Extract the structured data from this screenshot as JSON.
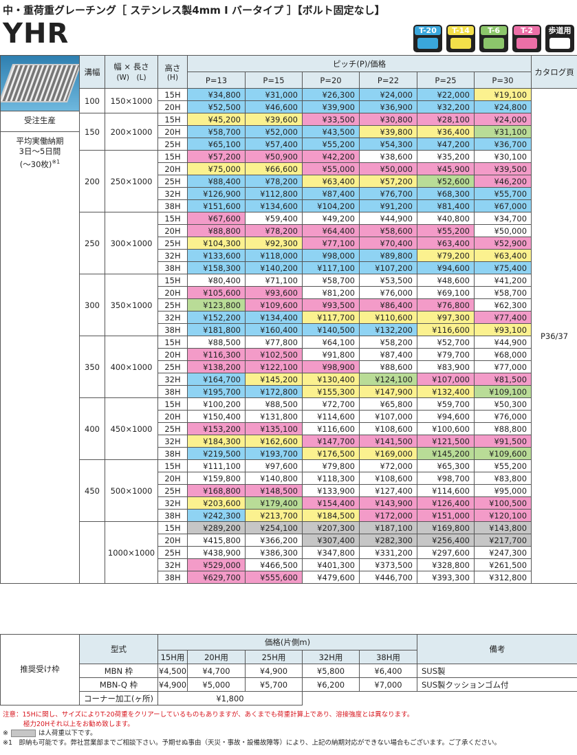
{
  "header": {
    "title": "中・重荷重グレーチング［ ステンレス製4mm I バータイプ ］【ボルト固定なし】",
    "model": "YHR",
    "badges": [
      {
        "label": "T-20",
        "color": "#3aa7dc"
      },
      {
        "label": "T-14",
        "color": "#f3e04a"
      },
      {
        "label": "T-6",
        "color": "#8cc66b"
      },
      {
        "label": "T-2",
        "color": "#ec6fa7"
      },
      {
        "label": "歩道用",
        "color": "#222222"
      }
    ]
  },
  "side": {
    "made_to_order": "受注生産",
    "lead_time": [
      "平均実働納期",
      "3日～5日間",
      "(～30枚)"
    ],
    "lead_note": "※1"
  },
  "palette": {
    "B": "#8fd3f3",
    "Y": "#fbf18f",
    "P": "#f39bc8",
    "G": "#b9dc97",
    "S": "#c6c6c6",
    "W": "#ffffff"
  },
  "table": {
    "headers": {
      "groove": "溝幅",
      "size": "幅 × 長さ",
      "size_sub": "(W)　(L)",
      "height": "高さ",
      "height_sub": "(H)",
      "pitch": "ピッチ(P)/価格",
      "pitches": [
        "P=13",
        "P=15",
        "P=20",
        "P=22",
        "P=25",
        "P=30"
      ],
      "catalog": "カタログ頁"
    },
    "catalog_page": "P36/37",
    "groups": [
      {
        "groove": "100",
        "size": "150×1000",
        "rows": [
          {
            "h": "15H",
            "prices": [
              "¥34,800",
              "¥31,000",
              "¥26,300",
              "¥24,000",
              "¥22,000",
              "¥19,100"
            ],
            "fills": "BBBBBY"
          },
          {
            "h": "20H",
            "prices": [
              "¥52,500",
              "¥46,600",
              "¥39,900",
              "¥36,900",
              "¥32,200",
              "¥24,800"
            ],
            "fills": "BBBBBB"
          }
        ]
      },
      {
        "groove": "150",
        "size": "200×1000",
        "rows": [
          {
            "h": "15H",
            "prices": [
              "¥45,200",
              "¥39,600",
              "¥33,500",
              "¥30,800",
              "¥28,100",
              "¥24,000"
            ],
            "fills": "YYPPPP"
          },
          {
            "h": "20H",
            "prices": [
              "¥58,700",
              "¥52,000",
              "¥43,500",
              "¥39,800",
              "¥36,400",
              "¥31,100"
            ],
            "fills": "BBBYYG"
          },
          {
            "h": "25H",
            "prices": [
              "¥65,100",
              "¥57,400",
              "¥55,200",
              "¥54,300",
              "¥47,200",
              "¥36,700"
            ],
            "fills": "BBBBBB"
          }
        ]
      },
      {
        "groove": "200",
        "size": "250×1000",
        "rows": [
          {
            "h": "15H",
            "prices": [
              "¥57,200",
              "¥50,900",
              "¥42,200",
              "¥38,600",
              "¥35,200",
              "¥30,100"
            ],
            "fills": "PPPWWW"
          },
          {
            "h": "20H",
            "prices": [
              "¥75,000",
              "¥66,600",
              "¥55,000",
              "¥50,000",
              "¥45,900",
              "¥39,500"
            ],
            "fills": "YYPPPP"
          },
          {
            "h": "25H",
            "prices": [
              "¥88,400",
              "¥78,200",
              "¥63,400",
              "¥57,200",
              "¥52,600",
              "¥46,200"
            ],
            "fills": "BBYYGP"
          },
          {
            "h": "32H",
            "prices": [
              "¥126,900",
              "¥112,800",
              "¥87,400",
              "¥76,700",
              "¥68,300",
              "¥55,700"
            ],
            "fills": "BBBBBB"
          },
          {
            "h": "38H",
            "prices": [
              "¥151,600",
              "¥134,600",
              "¥104,200",
              "¥91,200",
              "¥81,400",
              "¥67,000"
            ],
            "fills": "BBBBBB"
          }
        ]
      },
      {
        "groove": "250",
        "size": "300×1000",
        "rows": [
          {
            "h": "15H",
            "prices": [
              "¥67,600",
              "¥59,400",
              "¥49,200",
              "¥44,900",
              "¥40,800",
              "¥34,700"
            ],
            "fills": "PWWWWW"
          },
          {
            "h": "20H",
            "prices": [
              "¥88,800",
              "¥78,200",
              "¥64,400",
              "¥58,600",
              "¥55,200",
              "¥50,000"
            ],
            "fills": "PPPPPW"
          },
          {
            "h": "25H",
            "prices": [
              "¥104,300",
              "¥92,300",
              "¥77,100",
              "¥70,400",
              "¥63,400",
              "¥52,900"
            ],
            "fills": "YYPPPP"
          },
          {
            "h": "32H",
            "prices": [
              "¥133,600",
              "¥118,000",
              "¥98,000",
              "¥89,800",
              "¥79,200",
              "¥63,400"
            ],
            "fills": "BBBBYY"
          },
          {
            "h": "38H",
            "prices": [
              "¥158,300",
              "¥140,200",
              "¥117,100",
              "¥107,200",
              "¥94,600",
              "¥75,400"
            ],
            "fills": "BBBBBB"
          }
        ]
      },
      {
        "groove": "300",
        "size": "350×1000",
        "rows": [
          {
            "h": "15H",
            "prices": [
              "¥80,400",
              "¥71,100",
              "¥58,700",
              "¥53,500",
              "¥48,600",
              "¥41,200"
            ],
            "fills": "WWWWWW"
          },
          {
            "h": "20H",
            "prices": [
              "¥105,600",
              "¥93,600",
              "¥81,200",
              "¥76,000",
              "¥69,100",
              "¥58,700"
            ],
            "fills": "PPWWWW"
          },
          {
            "h": "25H",
            "prices": [
              "¥123,800",
              "¥109,600",
              "¥93,500",
              "¥86,400",
              "¥76,800",
              "¥62,300"
            ],
            "fills": "GPPPPW"
          },
          {
            "h": "32H",
            "prices": [
              "¥152,200",
              "¥134,400",
              "¥117,700",
              "¥110,600",
              "¥97,300",
              "¥77,400"
            ],
            "fills": "BBYYYP"
          },
          {
            "h": "38H",
            "prices": [
              "¥181,800",
              "¥160,400",
              "¥140,500",
              "¥132,200",
              "¥116,600",
              "¥93,100"
            ],
            "fills": "BBBBYY"
          }
        ]
      },
      {
        "groove": "350",
        "size": "400×1000",
        "rows": [
          {
            "h": "15H",
            "prices": [
              "¥88,500",
              "¥77,800",
              "¥64,100",
              "¥58,200",
              "¥52,700",
              "¥44,900"
            ],
            "fills": "WWWWWW"
          },
          {
            "h": "20H",
            "prices": [
              "¥116,300",
              "¥102,500",
              "¥91,800",
              "¥87,400",
              "¥79,700",
              "¥68,000"
            ],
            "fills": "PPWWWW"
          },
          {
            "h": "25H",
            "prices": [
              "¥138,200",
              "¥122,100",
              "¥98,900",
              "¥88,600",
              "¥83,900",
              "¥77,000"
            ],
            "fills": "PPPWWW"
          },
          {
            "h": "32H",
            "prices": [
              "¥164,700",
              "¥145,200",
              "¥130,400",
              "¥124,100",
              "¥107,000",
              "¥81,500"
            ],
            "fills": "BYYGPP"
          },
          {
            "h": "38H",
            "prices": [
              "¥195,700",
              "¥172,800",
              "¥155,300",
              "¥147,900",
              "¥132,400",
              "¥109,100"
            ],
            "fills": "BBYYYG"
          }
        ]
      },
      {
        "groove": "400",
        "size": "450×1000",
        "rows": [
          {
            "h": "15H",
            "prices": [
              "¥100,200",
              "¥88,500",
              "¥72,700",
              "¥65,800",
              "¥59,700",
              "¥50,300"
            ],
            "fills": "WWWWWW"
          },
          {
            "h": "20H",
            "prices": [
              "¥150,400",
              "¥131,800",
              "¥114,600",
              "¥107,000",
              "¥94,600",
              "¥76,000"
            ],
            "fills": "WWWWWW"
          },
          {
            "h": "25H",
            "prices": [
              "¥153,200",
              "¥135,100",
              "¥116,600",
              "¥108,600",
              "¥100,600",
              "¥88,800"
            ],
            "fills": "PPWWWW"
          },
          {
            "h": "32H",
            "prices": [
              "¥184,300",
              "¥162,600",
              "¥147,700",
              "¥141,500",
              "¥121,500",
              "¥91,500"
            ],
            "fills": "YYPPPP"
          },
          {
            "h": "38H",
            "prices": [
              "¥219,500",
              "¥193,700",
              "¥176,500",
              "¥169,000",
              "¥145,200",
              "¥109,600"
            ],
            "fills": "BBYYGG"
          }
        ]
      },
      {
        "groove": "450",
        "size": "500×1000",
        "rows": [
          {
            "h": "15H",
            "prices": [
              "¥111,100",
              "¥97,600",
              "¥79,800",
              "¥72,000",
              "¥65,300",
              "¥55,200"
            ],
            "fills": "WWWWWW"
          },
          {
            "h": "20H",
            "prices": [
              "¥159,800",
              "¥140,800",
              "¥118,300",
              "¥108,600",
              "¥98,700",
              "¥83,800"
            ],
            "fills": "WWWWWW"
          },
          {
            "h": "25H",
            "prices": [
              "¥168,800",
              "¥148,500",
              "¥133,900",
              "¥127,400",
              "¥114,600",
              "¥95,000"
            ],
            "fills": "PPWWWW"
          },
          {
            "h": "32H",
            "prices": [
              "¥203,600",
              "¥179,400",
              "¥154,400",
              "¥143,900",
              "¥126,400",
              "¥100,500"
            ],
            "fills": "YGPPPP"
          },
          {
            "h": "38H",
            "prices": [
              "¥242,300",
              "¥213,700",
              "¥184,500",
              "¥172,000",
              "¥151,000",
              "¥120,100"
            ],
            "fills": "BYYPPP"
          }
        ]
      },
      {
        "groove": null,
        "size": "1000×1000",
        "rows": [
          {
            "h": "15H",
            "prices": [
              "¥289,200",
              "¥254,100",
              "¥207,300",
              "¥187,100",
              "¥169,800",
              "¥143,800"
            ],
            "fills": "SSSSSS"
          },
          {
            "h": "20H",
            "prices": [
              "¥415,800",
              "¥366,200",
              "¥307,400",
              "¥282,300",
              "¥256,400",
              "¥217,700"
            ],
            "fills": "WWSSSS"
          },
          {
            "h": "25H",
            "prices": [
              "¥438,900",
              "¥386,300",
              "¥347,800",
              "¥331,200",
              "¥297,600",
              "¥247,300"
            ],
            "fills": "WWWWWW"
          },
          {
            "h": "32H",
            "prices": [
              "¥529,000",
              "¥466,500",
              "¥401,300",
              "¥373,500",
              "¥328,800",
              "¥261,500"
            ],
            "fills": "PWWWWW"
          },
          {
            "h": "38H",
            "prices": [
              "¥629,700",
              "¥555,600",
              "¥479,600",
              "¥446,700",
              "¥393,300",
              "¥312,800"
            ],
            "fills": "PPWWWW"
          }
        ]
      }
    ]
  },
  "frames": {
    "label": "推奨受け枠",
    "model": "型式",
    "price": "価格(片側m)",
    "sizes": [
      "15H用",
      "20H用",
      "25H用",
      "32H用",
      "38H用"
    ],
    "remarks": "備考",
    "rows": [
      {
        "model": "MBN 枠",
        "prices": [
          "¥4,500",
          "¥4,700",
          "¥4,900",
          "¥5,800",
          "¥6,400"
        ],
        "remark": "SUS製"
      },
      {
        "model": "MBN-Q 枠",
        "prices": [
          "¥4,900",
          "¥5,000",
          "¥5,700",
          "¥6,200",
          "¥7,000"
        ],
        "remark": "SUS製クッションゴム付"
      }
    ],
    "corner": {
      "label": "コーナー加工(ヶ所)",
      "price": "¥1,800"
    }
  },
  "notes": {
    "caution": [
      "注意：15Hに関し、サイズによりT-20荷重をクリアーしているものもありますが、あくまでも荷重計算上であり、溶接強度とは異なります。",
      "極力20Hそれ以上をお勧め致します。"
    ],
    "gray_mark": "※",
    "gray_text": "は人荷重以下です。",
    "note1": "※1　即納も可能です。弊社営業部までご相談下さい。予期せぬ事由（天災・事故・設備故障等）により、上記の納期対応ができない場合もございます。ご了承ください。"
  }
}
